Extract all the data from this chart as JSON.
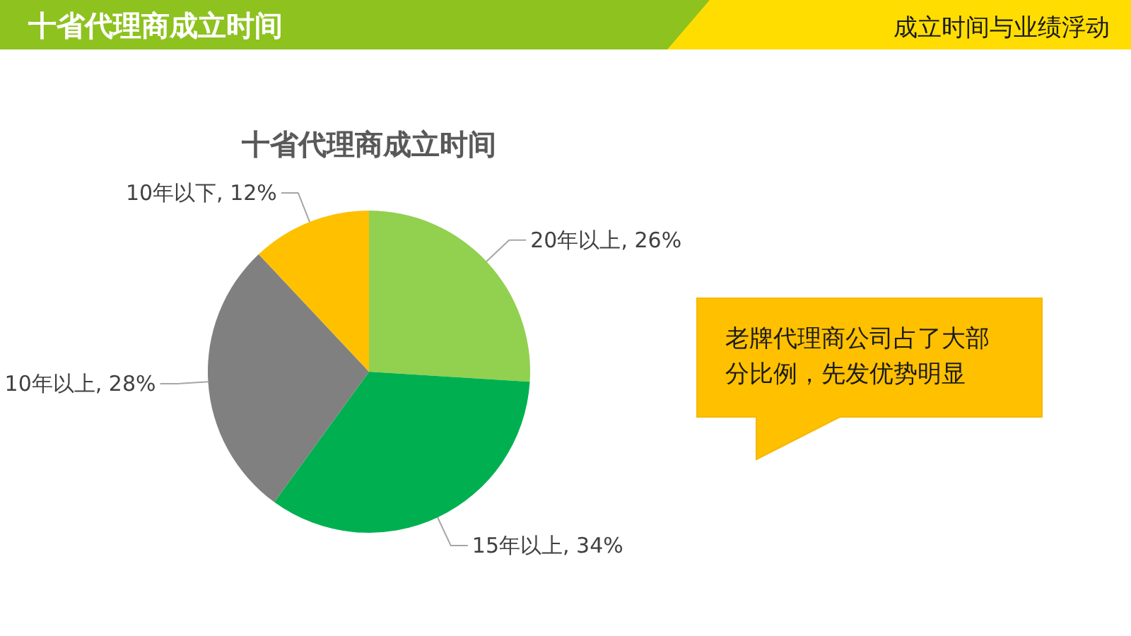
{
  "chart_data": {
    "type": "pie",
    "title": "十省代理商成立时间",
    "categories": [
      "20年以上",
      "15年以上",
      "10年以上",
      "10年以下"
    ],
    "values": [
      26,
      34,
      28,
      12
    ],
    "colors": [
      "#92d050",
      "#00b050",
      "#808080",
      "#ffc000"
    ],
    "value_labels": [
      "26%",
      "34%",
      "28%",
      "12%"
    ],
    "annotations": [
      "十省代理商成立时间",
      "成立时间与业绩浮动",
      "老牌代理商公司占了大部分比例，先发优势明显"
    ]
  }
}
